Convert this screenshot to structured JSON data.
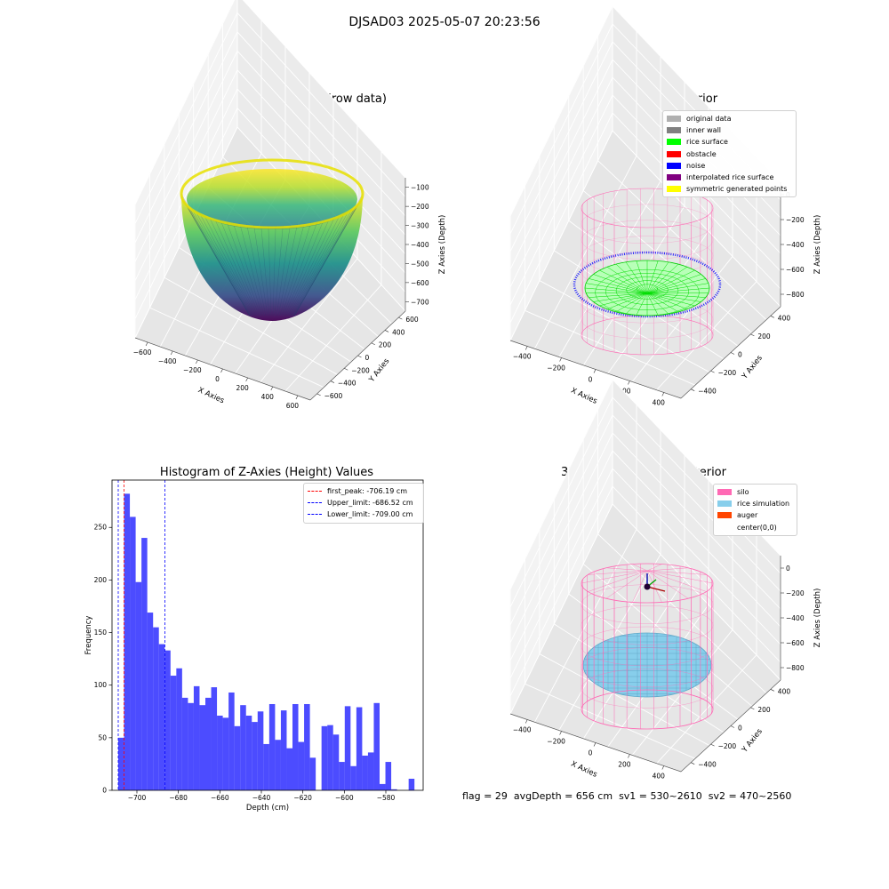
{
  "suptitle": "DJSAD03 2025-05-07 20:23:56",
  "footer": {
    "flag": "flag = 29",
    "avg_depth": "avgDepth = 656 cm",
    "sv1": "sv1 = 530~2610",
    "sv2": "sv2 = 470~2560"
  },
  "panels": {
    "raw": {
      "title": "3D Plot of Silo Interior(row data)",
      "x_label": "X Axies",
      "y_label": "Y Axies",
      "z_label": "Z Axies (Depth)",
      "x_ticks": [
        "−600",
        "−400",
        "−200",
        "0",
        "200",
        "400",
        "600"
      ],
      "y_ticks": [
        "−600",
        "−400",
        "−200",
        "0",
        "200",
        "400",
        "600"
      ],
      "z_ticks": [
        "−100",
        "−200",
        "−300",
        "−400",
        "−500",
        "−600",
        "−700"
      ]
    },
    "classify": {
      "title": "3D classify of Silo Interior",
      "x_label": "X Axies",
      "y_label": "Y Axies",
      "z_label": "Z Axies (Depth)",
      "x_ticks": [
        "−400",
        "−200",
        "0",
        "200",
        "400"
      ],
      "y_ticks": [
        "−400",
        "−200",
        "0",
        "200",
        "400"
      ],
      "z_ticks": [
        "0",
        "−200",
        "−400",
        "−600",
        "−800"
      ],
      "legend": [
        {
          "label": "original data",
          "color": "#b0b0b0"
        },
        {
          "label": "inner wall",
          "color": "#808080"
        },
        {
          "label": "rice surface",
          "color": "#00ff00"
        },
        {
          "label": "obstacle",
          "color": "#ff0000"
        },
        {
          "label": "noise",
          "color": "#0000ff"
        },
        {
          "label": "interpolated rice surface",
          "color": "#800080"
        },
        {
          "label": "symmetric generated points",
          "color": "#ffff00"
        }
      ]
    },
    "simulation": {
      "title": "3D simulation of Silo Interior",
      "x_label": "X Axies",
      "y_label": "Y Axies",
      "z_label": "Z Axies (Depth)",
      "x_ticks": [
        "−400",
        "−200",
        "0",
        "200",
        "400"
      ],
      "y_ticks": [
        "−400",
        "−200",
        "0",
        "200",
        "400"
      ],
      "z_ticks": [
        "0",
        "−200",
        "−400",
        "−600",
        "−800"
      ],
      "legend": [
        {
          "label": "silo",
          "color": "#ff69b4"
        },
        {
          "label": "rice simulation",
          "color": "#87ceeb"
        },
        {
          "label": "auger",
          "color": "#ff4500"
        },
        {
          "label": "center(0,0)",
          "color": ""
        }
      ]
    }
  },
  "chart_data": {
    "type": "bar",
    "title": "Histogram of Z-Axies (Height) Values",
    "xlabel": "Depth (cm)",
    "ylabel": "Frequency",
    "xlim": [
      -712,
      -562
    ],
    "ylim": [
      0,
      295
    ],
    "x_ticks": [
      -700,
      -680,
      -660,
      -640,
      -620,
      -600,
      -580
    ],
    "y_ticks": [
      0,
      50,
      100,
      150,
      200,
      250
    ],
    "bar_color": "#0000ff",
    "bin_start": -709.0,
    "bin_width": 2.8,
    "counts": [
      50,
      282,
      260,
      198,
      240,
      169,
      155,
      139,
      133,
      109,
      116,
      88,
      83,
      99,
      81,
      88,
      98,
      71,
      69,
      93,
      61,
      81,
      71,
      65,
      75,
      44,
      82,
      48,
      76,
      40,
      82,
      46,
      82,
      31,
      0,
      61,
      62,
      53,
      27,
      80,
      23,
      79,
      33,
      36,
      83,
      6,
      27,
      1,
      0,
      0,
      11
    ],
    "vlines": [
      {
        "name": "first_peak",
        "label": "first_peak: -706.19 cm",
        "value": -706.19,
        "color": "#ff0000"
      },
      {
        "name": "upper-limit",
        "label": "Upper_limit: -686.52 cm",
        "value": -686.52,
        "color": "#0000ff"
      },
      {
        "name": "lower-limit",
        "label": "Lower_limit: -709.00 cm",
        "value": -709.0,
        "color": "#0000ff"
      }
    ],
    "legend_position": "upper right"
  }
}
